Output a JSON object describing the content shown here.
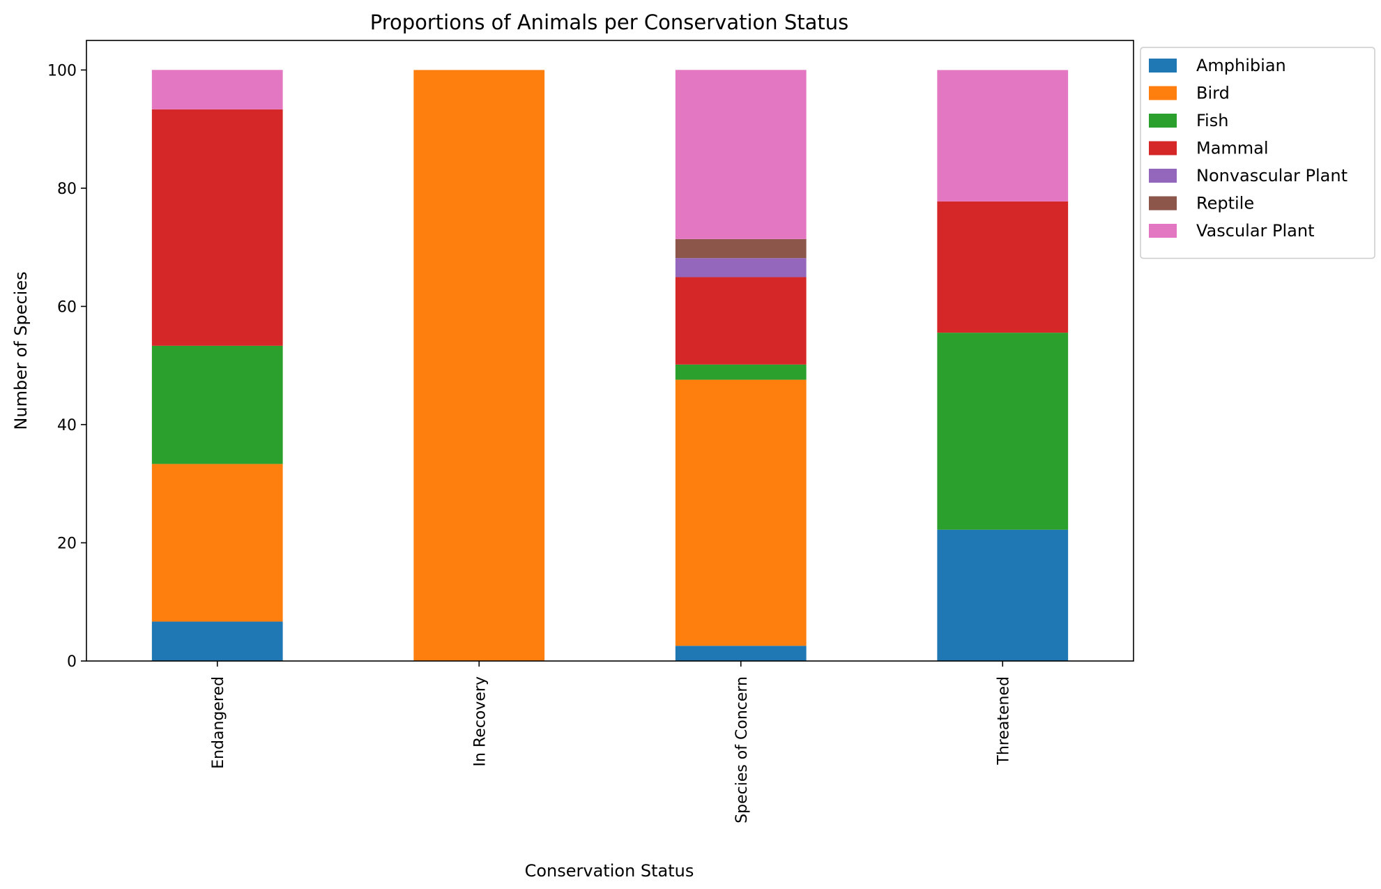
{
  "chart_data": {
    "type": "bar",
    "stacked": true,
    "title": "Proportions of Animals per Conservation Status",
    "xlabel": "Conservation Status",
    "ylabel": "Number of Species",
    "ylim": [
      0,
      105
    ],
    "yticks": [
      0,
      20,
      40,
      60,
      80,
      100
    ],
    "grid": false,
    "legend_position": "outside-top-right",
    "categories": [
      "Endangered",
      "In Recovery",
      "Species of Concern",
      "Threatened"
    ],
    "series": [
      {
        "name": "Amphibian",
        "color": "#1f77b4",
        "values": [
          6.67,
          0,
          2.57,
          22.22
        ]
      },
      {
        "name": "Bird",
        "color": "#ff7f0e",
        "values": [
          26.67,
          100,
          45.02,
          0
        ]
      },
      {
        "name": "Fish",
        "color": "#2ca02c",
        "values": [
          20.0,
          0,
          2.57,
          33.33
        ]
      },
      {
        "name": "Mammal",
        "color": "#d62728",
        "values": [
          40.0,
          0,
          14.79,
          22.22
        ]
      },
      {
        "name": "Nonvascular Plant",
        "color": "#9467bd",
        "values": [
          0,
          0,
          3.22,
          0
        ]
      },
      {
        "name": "Reptile",
        "color": "#8c564b",
        "values": [
          0,
          0,
          3.22,
          0
        ]
      },
      {
        "name": "Vascular Plant",
        "color": "#e377c2",
        "values": [
          6.67,
          0,
          28.62,
          22.22
        ]
      }
    ]
  }
}
